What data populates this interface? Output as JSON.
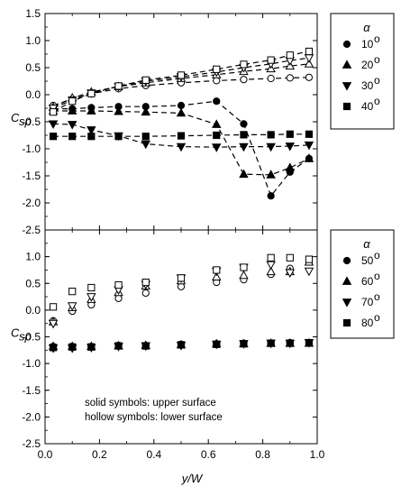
{
  "chart_data": {
    "type": "scatter",
    "ylabel_main": "C",
    "ylabel_sub": "sp",
    "xlabel": "y/W",
    "xlim": [
      0,
      1.0
    ],
    "xticks": [
      "0.0",
      "0.2",
      "0.4",
      "0.6",
      "0.8",
      "1.0"
    ],
    "ylim": [
      -2.5,
      1.5
    ],
    "yticks": [
      "1.5",
      "1.0",
      "0.5",
      "0.0",
      "-0.5",
      "-1.0",
      "-1.5",
      "-2.0",
      "-2.5"
    ],
    "note_solid": "solid symbols: upper surface",
    "note_hollow": "hollow symbols: lower surface",
    "legend_symbol": "α",
    "degree_mark": "o",
    "panels": [
      {
        "legend_position": "top-right",
        "series": [
          {
            "name": "10",
            "marker": "circle",
            "upper": {
              "x": [
                0.03,
                0.1,
                0.17,
                0.27,
                0.37,
                0.5,
                0.63,
                0.73,
                0.83,
                0.9,
                0.97
              ],
              "y": [
                -0.26,
                -0.26,
                -0.24,
                -0.22,
                -0.22,
                -0.2,
                -0.12,
                -0.54,
                -1.87,
                -1.43,
                -1.18
              ]
            },
            "lower": {
              "x": [
                0.03,
                0.1,
                0.17,
                0.27,
                0.37,
                0.5,
                0.63,
                0.73,
                0.83,
                0.9,
                0.97
              ],
              "y": [
                -0.2,
                -0.08,
                0.02,
                0.11,
                0.17,
                0.22,
                0.26,
                0.28,
                0.3,
                0.31,
                0.32
              ]
            }
          },
          {
            "name": "20",
            "marker": "triangle-up",
            "upper": {
              "x": [
                0.03,
                0.1,
                0.17,
                0.27,
                0.37,
                0.5,
                0.63,
                0.73,
                0.83,
                0.9,
                0.97
              ],
              "y": [
                -0.3,
                -0.3,
                -0.3,
                -0.31,
                -0.32,
                -0.34,
                -0.55,
                -1.47,
                -1.48,
                -1.35,
                -1.18
              ]
            },
            "lower": {
              "x": [
                0.03,
                0.1,
                0.17,
                0.27,
                0.37,
                0.5,
                0.63,
                0.73,
                0.83,
                0.9,
                0.97
              ],
              "y": [
                -0.23,
                -0.06,
                0.05,
                0.15,
                0.22,
                0.3,
                0.37,
                0.43,
                0.48,
                0.53,
                0.57
              ]
            }
          },
          {
            "name": "30",
            "marker": "triangle-down",
            "upper": {
              "x": [
                0.03,
                0.1,
                0.17,
                0.27,
                0.37,
                0.5,
                0.63,
                0.73,
                0.83,
                0.9,
                0.97
              ],
              "y": [
                -0.54,
                -0.55,
                -0.65,
                -0.76,
                -0.91,
                -0.96,
                -0.97,
                -0.96,
                -0.96,
                -0.95,
                -0.93
              ]
            },
            "lower": {
              "x": [
                0.03,
                0.1,
                0.17,
                0.27,
                0.37,
                0.5,
                0.63,
                0.73,
                0.83,
                0.9,
                0.97
              ],
              "y": [
                -0.25,
                -0.1,
                0.03,
                0.15,
                0.25,
                0.33,
                0.42,
                0.5,
                0.57,
                0.63,
                0.68
              ]
            }
          },
          {
            "name": "40",
            "marker": "square",
            "upper": {
              "x": [
                0.03,
                0.1,
                0.17,
                0.27,
                0.37,
                0.5,
                0.63,
                0.73,
                0.83,
                0.9,
                0.97
              ],
              "y": [
                -0.77,
                -0.77,
                -0.77,
                -0.77,
                -0.77,
                -0.76,
                -0.75,
                -0.74,
                -0.74,
                -0.73,
                -0.73
              ]
            },
            "lower": {
              "x": [
                0.03,
                0.1,
                0.17,
                0.27,
                0.37,
                0.5,
                0.63,
                0.73,
                0.83,
                0.9,
                0.97
              ],
              "y": [
                -0.32,
                -0.12,
                0.02,
                0.16,
                0.27,
                0.36,
                0.47,
                0.56,
                0.64,
                0.73,
                0.8
              ]
            }
          }
        ]
      },
      {
        "legend_position": "top-right",
        "series": [
          {
            "name": "50",
            "marker": "circle",
            "upper": {
              "x": [
                0.03,
                0.1,
                0.17,
                0.27,
                0.37,
                0.5,
                0.63,
                0.73,
                0.83,
                0.9,
                0.97
              ],
              "y": [
                -0.68,
                -0.68,
                -0.68,
                -0.66,
                -0.66,
                -0.64,
                -0.63,
                -0.62,
                -0.62,
                -0.61,
                -0.61
              ]
            },
            "lower": {
              "x": [
                0.03,
                0.1,
                0.17,
                0.27,
                0.37,
                0.5,
                0.63,
                0.73,
                0.83,
                0.9,
                0.97
              ],
              "y": [
                -0.2,
                -0.02,
                0.1,
                0.22,
                0.32,
                0.44,
                0.52,
                0.57,
                0.67,
                0.78,
                0.9
              ]
            }
          },
          {
            "name": "60",
            "marker": "triangle-up",
            "upper": {
              "x": [
                0.03,
                0.1,
                0.17,
                0.27,
                0.37,
                0.5,
                0.63,
                0.73,
                0.83,
                0.9,
                0.97
              ],
              "y": [
                -0.68,
                -0.68,
                -0.68,
                -0.67,
                -0.66,
                -0.65,
                -0.63,
                -0.63,
                -0.62,
                -0.62,
                -0.62
              ]
            },
            "lower": {
              "x": [
                0.03,
                0.1,
                0.17,
                0.27,
                0.37,
                0.5,
                0.63,
                0.73,
                0.83,
                0.9,
                0.97
              ],
              "y": [
                -0.22,
                0.05,
                0.2,
                0.33,
                0.45,
                0.55,
                0.62,
                0.65,
                0.72,
                0.72,
                0.9
              ]
            }
          },
          {
            "name": "70",
            "marker": "triangle-down",
            "upper": {
              "x": [
                0.03,
                0.1,
                0.17,
                0.27,
                0.37,
                0.5,
                0.63,
                0.73,
                0.83,
                0.9,
                0.97
              ],
              "y": [
                -0.71,
                -0.71,
                -0.7,
                -0.68,
                -0.67,
                -0.66,
                -0.64,
                -0.63,
                -0.62,
                -0.62,
                -0.61
              ]
            },
            "lower": {
              "x": [
                0.03,
                0.1,
                0.17,
                0.27,
                0.37,
                0.5,
                0.63,
                0.73,
                0.83,
                0.9,
                0.97
              ],
              "y": [
                -0.25,
                0.08,
                0.25,
                0.38,
                0.48,
                0.6,
                0.73,
                0.8,
                0.85,
                0.7,
                0.73
              ]
            }
          },
          {
            "name": "80",
            "marker": "square",
            "upper": {
              "x": [
                0.03,
                0.1,
                0.17,
                0.27,
                0.37,
                0.5,
                0.63,
                0.73,
                0.83,
                0.9,
                0.97
              ],
              "y": [
                -0.7,
                -0.69,
                -0.69,
                -0.67,
                -0.67,
                -0.65,
                -0.64,
                -0.63,
                -0.62,
                -0.62,
                -0.61
              ]
            },
            "lower": {
              "x": [
                0.03,
                0.1,
                0.17,
                0.27,
                0.37,
                0.5,
                0.63,
                0.73,
                0.83,
                0.9,
                0.97
              ],
              "y": [
                0.06,
                0.35,
                0.42,
                0.47,
                0.52,
                0.6,
                0.75,
                0.8,
                0.98,
                0.98,
                0.95
              ]
            }
          }
        ]
      }
    ]
  }
}
